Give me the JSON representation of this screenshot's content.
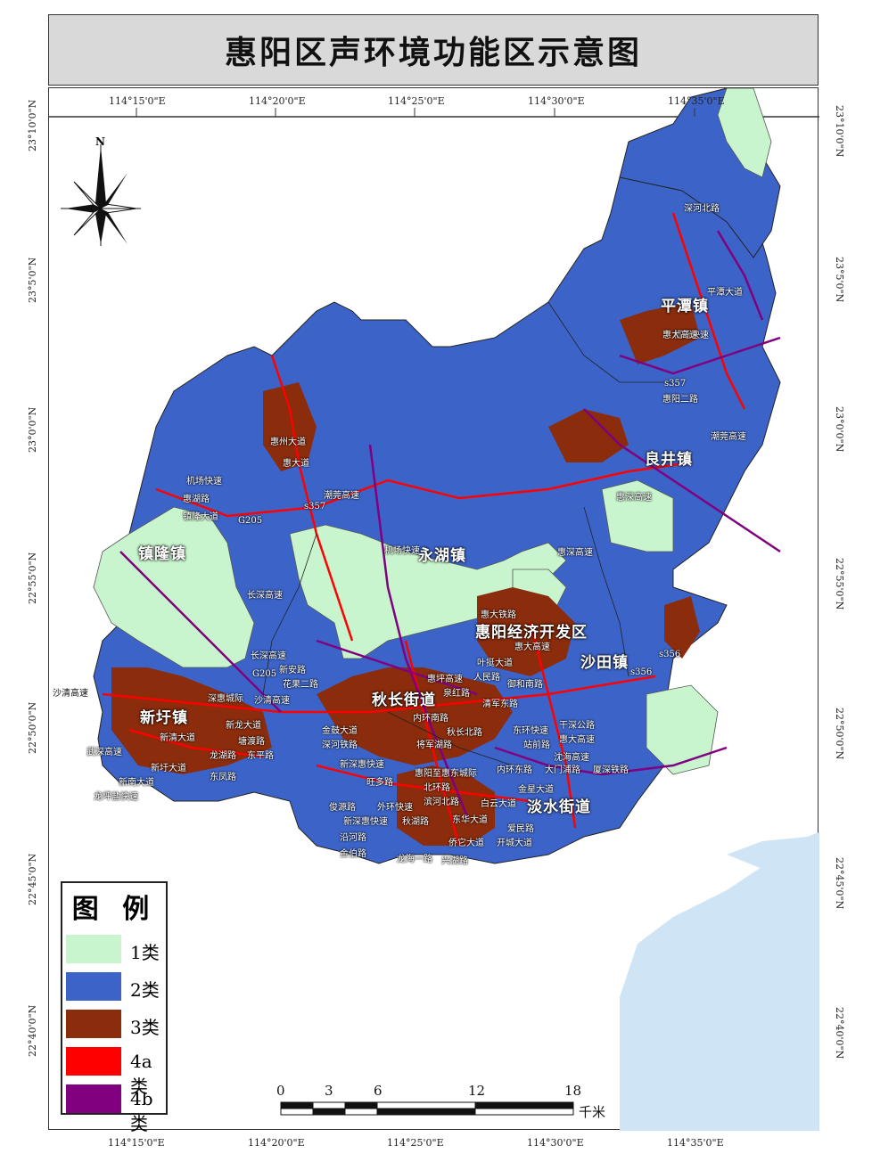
{
  "title": "惠阳区声环境功能区示意图",
  "axes": {
    "top_lon": [
      "114°15'0\"E",
      "114°20'0\"E",
      "114°25'0\"E",
      "114°30'0\"E",
      "114°35'0\"E"
    ],
    "bottom_lon": [
      "114°15'0\"E",
      "114°20'0\"E",
      "114°25'0\"E",
      "114°30'0\"E",
      "114°35'0\"E"
    ],
    "left_lat": [
      "23°10'0\"N",
      "23°5'0\"N",
      "23°0'0\"N",
      "22°55'0\"N",
      "22°50'0\"N",
      "22°45'0\"N",
      "22°40'0\"N"
    ],
    "right_lat": [
      "23°10'0\"N",
      "23°5'0\"N",
      "23°0'0\"N",
      "22°55'0\"N",
      "22°50'0\"N",
      "22°45'0\"N",
      "22°40'0\"N"
    ]
  },
  "north_arrow": {
    "label": "N",
    "icon": "compass-rose-icon"
  },
  "legend": {
    "title": "图 例",
    "items": [
      {
        "label": "1类",
        "color": "#c8f5cd"
      },
      {
        "label": "2类",
        "color": "#3c64c8"
      },
      {
        "label": "3类",
        "color": "#8b2c0c"
      },
      {
        "label": "4a类",
        "color": "#ff0000"
      },
      {
        "label": "4b类",
        "color": "#800080"
      }
    ]
  },
  "scale_bar": {
    "ticks": [
      "0",
      "3",
      "6",
      "12",
      "18"
    ],
    "unit": "千米"
  },
  "colors": {
    "sea": "#cfe5f5",
    "land_outside": "#ffffff",
    "boundary": "#333333"
  },
  "places": {
    "pingtan": "平潭镇",
    "liangjing": "良井镇",
    "zhenlong": "镇隆镇",
    "yonghu": "永湖镇",
    "kaifaqu": "惠阳经济开发区",
    "shatian": "沙田镇",
    "xinxu": "新圩镇",
    "qiuchang": "秋长街道",
    "danshui": "淡水街道"
  },
  "roads": {
    "r1": "沙清高速",
    "r2": "武深高速",
    "r3": "新清大道",
    "r4": "新圩大道",
    "r5": "新南大道",
    "r6": "龙坪盐快速",
    "r7": "新龙大道",
    "r8": "塘渡路",
    "r9": "龙湖路",
    "r10": "东平路",
    "r11": "东凤路",
    "r12": "长深高速",
    "r13": "新安路",
    "r14": "花果二路",
    "r15": "深惠城际",
    "r16": "沙清高速",
    "r17": "G205",
    "r18": "金鼓大道",
    "r19": "深河铁路",
    "r20": "新深惠快速",
    "r21": "旺多路",
    "r22": "外环快速",
    "r23": "俊源路",
    "r24": "新深惠快速",
    "r25": "秋湖路",
    "r26": "沿河路",
    "r27": "金伯路",
    "r28": "龙海一路",
    "r29": "兴湖路",
    "r30": "惠大铁路",
    "r31": "惠大高速",
    "r32": "叶挺大道",
    "r33": "人民路",
    "r34": "惠坪高速",
    "r35": "泉红路",
    "r36": "御和南路",
    "r37": "清军东路",
    "r38": "内环南路",
    "r39": "秋长北路",
    "r40": "将军湖路",
    "r41": "惠阳至惠东城际",
    "r42": "东环快速",
    "r43": "站前路",
    "r44": "干深公路",
    "r45": "惠大高速",
    "r46": "沈海高速",
    "r47": "内环东路",
    "r48": "大门浦路",
    "r49": "厦深铁路",
    "r50": "北环路",
    "r51": "滨河北路",
    "r52": "金星大道",
    "r53": "白云大道",
    "r54": "东华大道",
    "r55": "爱民路",
    "r56": "开城大道",
    "r57": "侨它大道",
    "r58": "机场快速",
    "r59": "潮莞高速",
    "r60": "s357",
    "r61": "G205",
    "r62": "s356",
    "r63": "s356",
    "r64": "机场快速",
    "r65": "惠阳二路",
    "r66": "s357",
    "r67": "潮莞高速",
    "r68": "惠深高速",
    "r69": "平潭大道",
    "r70": "深河北路",
    "r71": "惠大高速",
    "r72": "机场快速",
    "r73": "惠湖路",
    "r74": "惠大道",
    "r75": "惠州大道",
    "r76": "镇隆大道",
    "r77": "惠深高速",
    "r78": "长深高速"
  }
}
